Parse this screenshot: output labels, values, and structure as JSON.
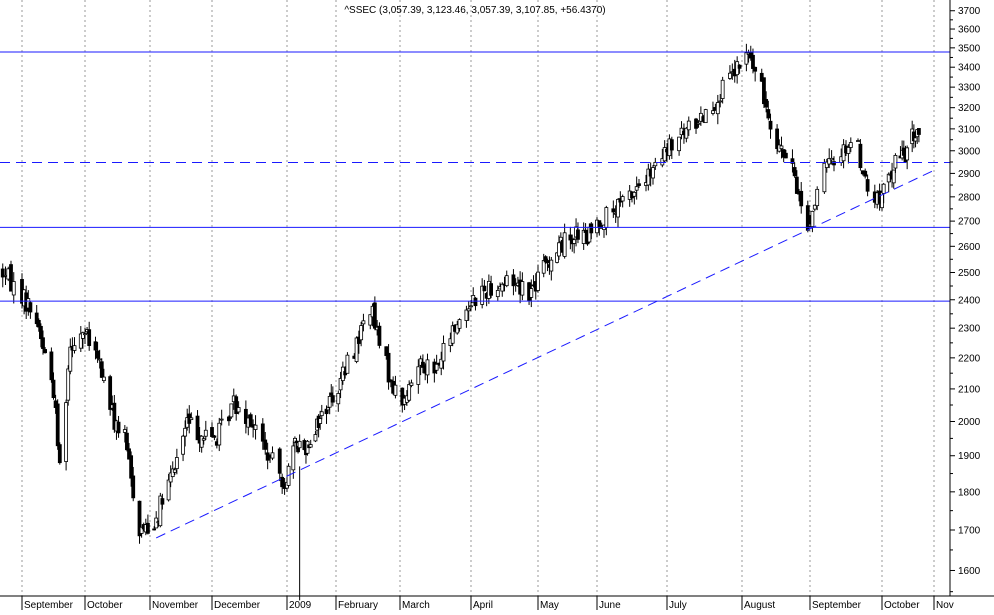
{
  "chart_data": {
    "type": "candlestick",
    "title": "^SSEC (3,057.39, 3,123.46, 3,057.39, 3,107.85, +56.4370)",
    "xlabel": "",
    "ylabel": "",
    "ylim": [
      1540,
      3760
    ],
    "y_scale": "log",
    "y_ticks": [
      1600,
      1700,
      1800,
      1900,
      2000,
      2100,
      2200,
      2300,
      2400,
      2500,
      2600,
      2700,
      2800,
      2900,
      3000,
      3100,
      3200,
      3300,
      3400,
      3500,
      3600,
      3700
    ],
    "x_ticks": [
      "September",
      "October",
      "November",
      "December",
      "2009",
      "February",
      "March",
      "April",
      "May",
      "June",
      "July",
      "August",
      "September",
      "October",
      "Nov"
    ],
    "grid": "vertical dotted at month starts",
    "horizontal_lines": [
      {
        "value": 3478,
        "style": "solid"
      },
      {
        "value": 2948,
        "style": "dashed"
      },
      {
        "value": 2675,
        "style": "solid"
      },
      {
        "value": 2395,
        "style": "solid"
      }
    ],
    "trendline": {
      "style": "dashed",
      "points": [
        [
          "2008-11-04",
          1680
        ],
        [
          "2009-10-31",
          2910
        ]
      ]
    },
    "annotations": [
      {
        "x": "2009-01-09",
        "value_high": 1870,
        "value_low": 1530
      }
    ],
    "waypoints": [
      [
        "2008-08-24",
        2510
      ],
      [
        "2008-09-01",
        2420
      ],
      [
        "2008-09-08",
        2330
      ],
      [
        "2008-09-16",
        2100
      ],
      [
        "2008-09-19",
        1870
      ],
      [
        "2008-09-24",
        2250
      ],
      [
        "2008-09-30",
        2290
      ],
      [
        "2008-10-08",
        2180
      ],
      [
        "2008-10-15",
        2000
      ],
      [
        "2008-10-20",
        1950
      ],
      [
        "2008-10-27",
        1700
      ],
      [
        "2008-11-03",
        1720
      ],
      [
        "2008-11-12",
        1850
      ],
      [
        "2008-11-19",
        2000
      ],
      [
        "2008-11-26",
        1960
      ],
      [
        "2008-12-03",
        1950
      ],
      [
        "2008-12-10",
        2060
      ],
      [
        "2008-12-17",
        2010
      ],
      [
        "2008-12-24",
        1900
      ],
      [
        "2008-12-31",
        1830
      ],
      [
        "2009-01-07",
        1940
      ],
      [
        "2009-01-12",
        1920
      ],
      [
        "2009-01-22",
        2010
      ],
      [
        "2009-02-02",
        2110
      ],
      [
        "2009-02-10",
        2250
      ],
      [
        "2009-02-16",
        2380
      ],
      [
        "2009-02-20",
        2240
      ],
      [
        "2009-02-27",
        2090
      ],
      [
        "2009-03-03",
        2060
      ],
      [
        "2009-03-10",
        2200
      ],
      [
        "2009-03-16",
        2150
      ],
      [
        "2009-03-24",
        2290
      ],
      [
        "2009-04-01",
        2400
      ],
      [
        "2009-04-10",
        2450
      ],
      [
        "2009-04-20",
        2470
      ],
      [
        "2009-04-28",
        2430
      ],
      [
        "2009-05-04",
        2520
      ],
      [
        "2009-05-12",
        2600
      ],
      [
        "2009-05-20",
        2650
      ],
      [
        "2009-05-27",
        2630
      ],
      [
        "2009-06-02",
        2700
      ],
      [
        "2009-06-10",
        2750
      ],
      [
        "2009-06-18",
        2840
      ],
      [
        "2009-06-25",
        2900
      ],
      [
        "2009-07-01",
        3000
      ],
      [
        "2009-07-10",
        3100
      ],
      [
        "2009-07-20",
        3220
      ],
      [
        "2009-07-28",
        3350
      ],
      [
        "2009-08-04",
        3470
      ],
      [
        "2009-08-10",
        3280
      ],
      [
        "2009-08-17",
        3050
      ],
      [
        "2009-08-25",
        2880
      ],
      [
        "2009-08-31",
        2670
      ],
      [
        "2009-09-06",
        2900
      ],
      [
        "2009-09-14",
        3000
      ],
      [
        "2009-09-20",
        3060
      ],
      [
        "2009-09-25",
        2820
      ],
      [
        "2009-09-30",
        2780
      ],
      [
        "2009-10-09",
        2950
      ],
      [
        "2009-10-16",
        3000
      ],
      [
        "2009-10-20",
        3070
      ],
      [
        "2009-10-23",
        3100
      ]
    ]
  }
}
